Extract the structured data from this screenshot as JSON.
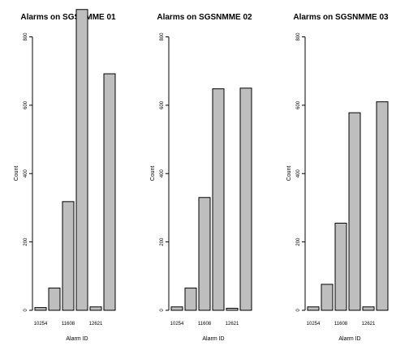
{
  "chart_data": [
    {
      "type": "bar",
      "title": "Alarms on SGSNMME 01",
      "xlabel": "Alarm ID",
      "ylabel": "Count",
      "categories": [
        "10254",
        "",
        "11608",
        "",
        "12621",
        ""
      ],
      "values": [
        8,
        65,
        318,
        880,
        10,
        692
      ],
      "ylim": [
        0,
        800
      ],
      "yticks": [
        "0",
        "200",
        "400",
        "600",
        "800"
      ],
      "bar_fill": "#bebebe",
      "grid": false
    },
    {
      "type": "bar",
      "title": "Alarms on SGSNMME 02",
      "xlabel": "Alarm ID",
      "ylabel": "Count",
      "categories": [
        "10254",
        "",
        "11608",
        "",
        "12621",
        ""
      ],
      "values": [
        10,
        65,
        330,
        648,
        6,
        650
      ],
      "ylim": [
        0,
        800
      ],
      "yticks": [
        "0",
        "200",
        "400",
        "600",
        "800"
      ],
      "bar_fill": "#bebebe",
      "grid": false
    },
    {
      "type": "bar",
      "title": "Alarms on SGSNMME 03",
      "xlabel": "Alarm ID",
      "ylabel": "Count",
      "categories": [
        "10254",
        "",
        "11608",
        "",
        "12621",
        ""
      ],
      "values": [
        10,
        76,
        255,
        578,
        10,
        610
      ],
      "ylim": [
        0,
        800
      ],
      "yticks": [
        "0",
        "200",
        "400",
        "600",
        "800"
      ],
      "bar_fill": "#bebebe",
      "grid": false
    }
  ]
}
